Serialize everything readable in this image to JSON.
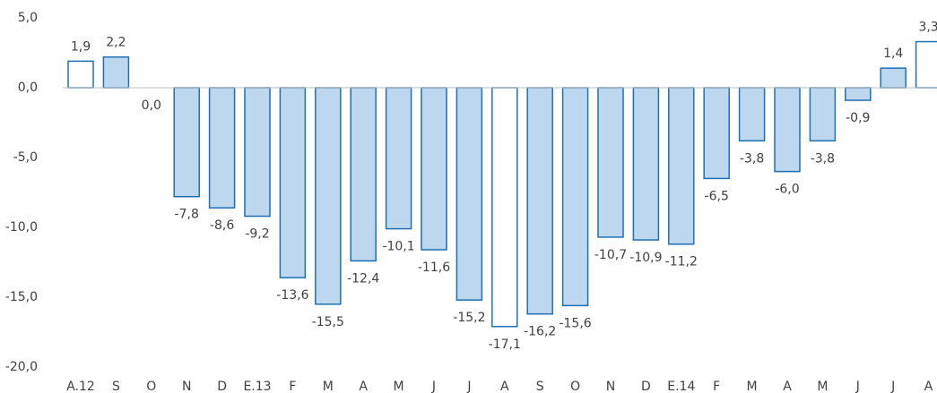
{
  "chart_data": {
    "type": "bar",
    "categories": [
      "A.12",
      "S",
      "O",
      "N",
      "D",
      "E.13",
      "F",
      "M",
      "A",
      "M",
      "J",
      "J",
      "A",
      "S",
      "O",
      "N",
      "D",
      "E.14",
      "F",
      "M",
      "A",
      "M",
      "J",
      "J",
      "A"
    ],
    "values": [
      1.9,
      2.2,
      0.0,
      -7.8,
      -8.6,
      -9.2,
      -13.6,
      -15.5,
      -12.4,
      -10.1,
      -11.6,
      -15.2,
      -17.1,
      -16.2,
      -15.6,
      -10.7,
      -10.9,
      -11.2,
      -6.5,
      -3.8,
      -6.0,
      -3.8,
      -0.9,
      1.4,
      3.3
    ],
    "value_labels": [
      "1,9",
      "2,2",
      "0,0",
      "-7,8",
      "-8,6",
      "-9,2",
      "-13,6",
      "-15,5",
      "-12,4",
      "-10,1",
      "-11,6",
      "-15,2",
      "-17,1",
      "-16,2",
      "-15,6",
      "-10,7",
      "-10,9",
      "-11,2",
      "-6,5",
      "-3,8",
      "-6,0",
      "-3,8",
      "-0,9",
      "1,4",
      "3,3"
    ],
    "colors": [
      "#ffffff",
      "#bdd7ee",
      "#bdd7ee",
      "#bdd7ee",
      "#bdd7ee",
      "#bdd7ee",
      "#bdd7ee",
      "#bdd7ee",
      "#bdd7ee",
      "#bdd7ee",
      "#bdd7ee",
      "#bdd7ee",
      "#ffffff",
      "#bdd7ee",
      "#bdd7ee",
      "#bdd7ee",
      "#bdd7ee",
      "#bdd7ee",
      "#bdd7ee",
      "#bdd7ee",
      "#bdd7ee",
      "#bdd7ee",
      "#bdd7ee",
      "#bdd7ee",
      "#ffffff"
    ],
    "edge_color": "#1f6fb5",
    "ylim": [
      -20,
      5
    ],
    "yticks": [
      {
        "value": -20,
        "label": "-20,0"
      },
      {
        "value": -15,
        "label": "-15,0"
      },
      {
        "value": -10,
        "label": "-10,0"
      },
      {
        "value": -5,
        "label": "-5,0"
      },
      {
        "value": 0,
        "label": "0,0"
      },
      {
        "value": 5,
        "label": "5,0"
      }
    ],
    "grid": false
  }
}
